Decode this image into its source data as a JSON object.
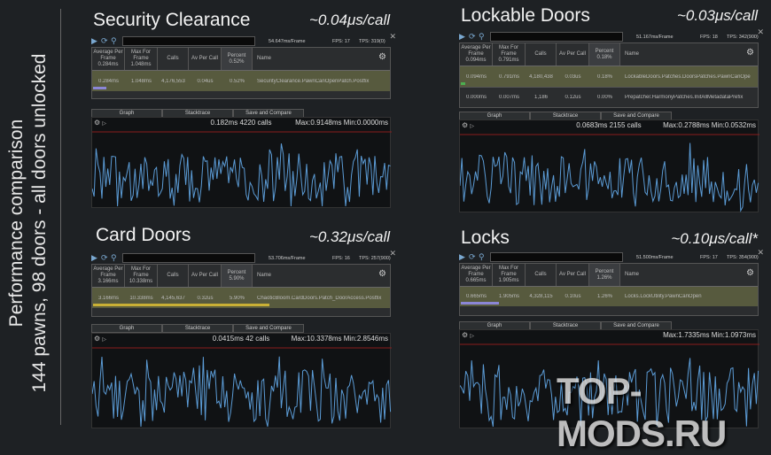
{
  "side": {
    "line1": "Performance comparison",
    "line2": "144 pawns, 98 doors - all doors unlocked"
  },
  "columns": {
    "avg": "Average Per Frame",
    "max": "Max For Frame",
    "calls": "Calls",
    "avcall": "Av Per Call",
    "pct": "Percent",
    "name": "Name"
  },
  "tabs": {
    "graph": "Graph",
    "stack": "Stacktrace",
    "save": "Save and Compare"
  },
  "watermark": "TOP-MODS.RU",
  "panels": [
    {
      "title": "Security Clearance",
      "speed": "~0.04μs/call",
      "frame": "54.647ms/Frame",
      "fps": "FPS: 17",
      "tps": "TPS: 319(0)",
      "hdr": {
        "avg": "0.284ms",
        "max": "1.048ms",
        "pct": "0.52%"
      },
      "rows": [
        {
          "avg": "0.284ms",
          "max": "1.048ms",
          "calls": "4,176,553",
          "avcall": "0.04us",
          "pct": "0.52%",
          "name": "SecurityClearance.PawnCanOpenPatch.Postfix",
          "bar": 0.045,
          "barColor": "#8b86d6"
        }
      ],
      "graph": {
        "summary": "0.182ms 4220 calls",
        "maxmin": "Max:0.9148ms Min:0.0000ms"
      }
    },
    {
      "title": "Lockable Doors",
      "speed": "~0.03μs/call",
      "frame": "51.167ms/Frame",
      "fps": "FPS: 18",
      "tps": "TPS: 342(900)",
      "hdr": {
        "avg": "0.094ms",
        "max": "0.791ms",
        "pct": "0.18%"
      },
      "rows": [
        {
          "avg": "0.094ms",
          "max": "0.791ms",
          "calls": "4,180,438",
          "avcall": "0.03us",
          "pct": "0.18%",
          "name": "LockableDoors.Patches.DoorsPatches.PawnCanOpe",
          "bar": 0.015,
          "barColor": "#4caf50"
        },
        {
          "avg": "0.000ms",
          "max": "0.007ms",
          "calls": "1,186",
          "avcall": "0.12us",
          "pct": "0.00%",
          "name": "Prepatcher.HarmonyPatches.InitAllMetadataPrefix",
          "bar": 0,
          "barColor": "#4caf50"
        }
      ],
      "graph": {
        "summary": "0.0683ms 2155 calls",
        "maxmin": "Max:0.2788ms Min:0.0532ms"
      }
    },
    {
      "title": "Card Doors",
      "speed": "~0.32μs/call",
      "frame": "53.706ms/Frame",
      "fps": "FPS: 16",
      "tps": "TPS: 257(900)",
      "hdr": {
        "avg": "3.166ms",
        "max": "10.338ms",
        "pct": "5.90%"
      },
      "rows": [
        {
          "avg": "3.166ms",
          "max": "10.338ms",
          "calls": "4,145,637",
          "avcall": "0.32us",
          "pct": "5.90%",
          "name": "ChaoticBloom.CardDoors.Patch_DoorAccess.Postfix",
          "bar": 0.59,
          "barColor": "#c9b035"
        }
      ],
      "graph": {
        "summary": "0.0415ms 42 calls",
        "maxmin": "Max:10.3378ms Min:2.8546ms"
      }
    },
    {
      "title": "Locks",
      "speed": "~0.10μs/call*",
      "frame": "51.500ms/Frame",
      "fps": "FPS: 17",
      "tps": "TPS: 354(900)",
      "hdr": {
        "avg": "0.665ms",
        "max": "1.905ms",
        "pct": "1.26%"
      },
      "rows": [
        {
          "avg": "0.665ms",
          "max": "1.905ms",
          "calls": "4,328,115",
          "avcall": "0.10us",
          "pct": "1.26%",
          "name": "Locks.LockUtility.PawnCanOpen",
          "bar": 0.126,
          "barColor": "#8b86d6"
        }
      ],
      "graph": {
        "summary": "",
        "maxmin": "Max:1.7335ms Min:1.0973ms"
      }
    }
  ]
}
